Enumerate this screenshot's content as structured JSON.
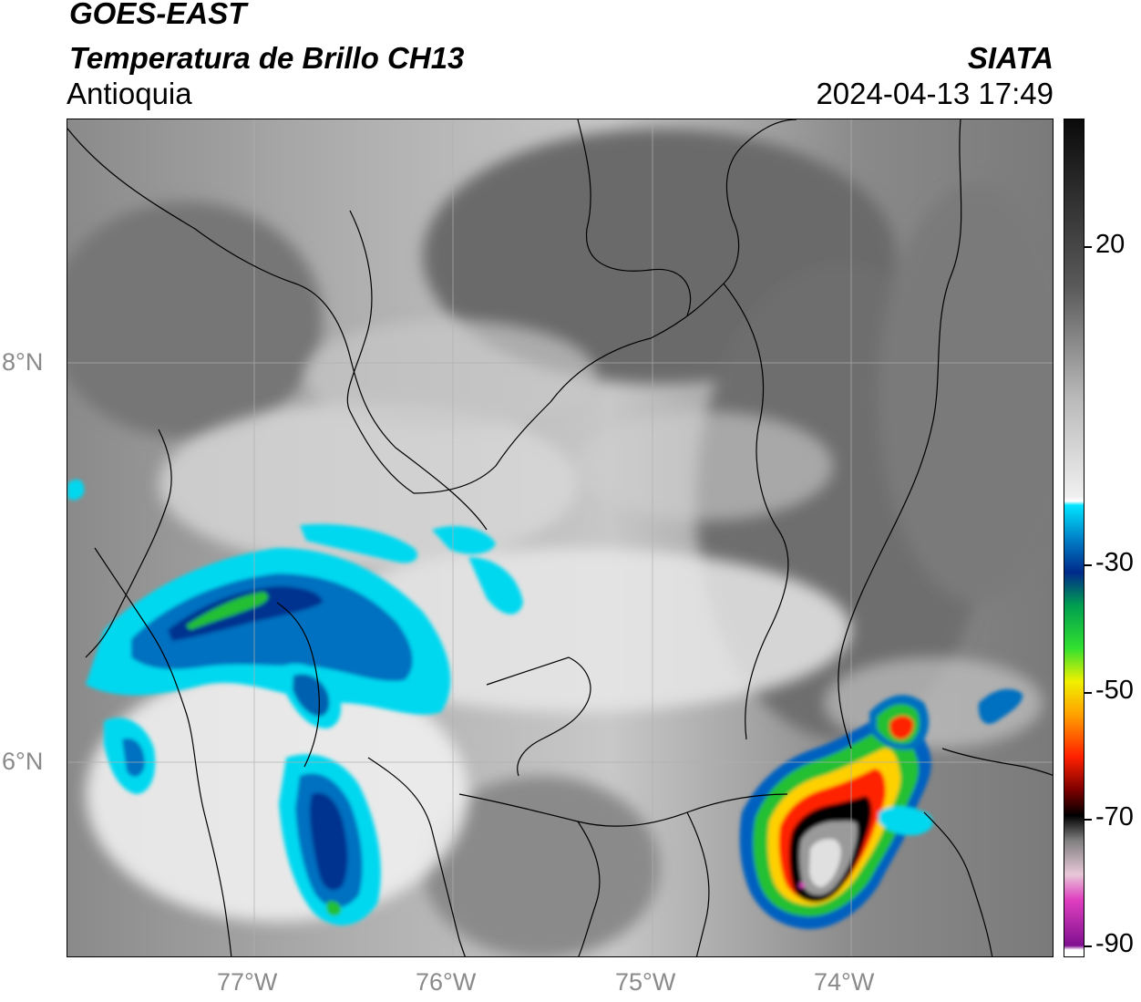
{
  "header": {
    "satellite": "GOES-EAST",
    "product": "Temperatura de Brillo CH13",
    "region": "Antioquia",
    "agency": "SIATA",
    "datetime": "2024-04-13 17:49"
  },
  "map": {
    "lat_labels": [
      "8°N",
      "6°N"
    ],
    "lon_labels": [
      "77°W",
      "76°W",
      "75°W",
      "74°W"
    ],
    "background_gray": "#7a7a7a",
    "gridline_color": "#b0b0b0",
    "border_color": "#000000"
  },
  "colorbar": {
    "labels": [
      "20",
      "-30",
      "-50",
      "-70",
      "-90"
    ],
    "stops": [
      {
        "color": "#0a0a0a",
        "pos": 0
      },
      {
        "color": "#5a5a5a",
        "pos": 0.2
      },
      {
        "color": "#b8b8b8",
        "pos": 0.33
      },
      {
        "color": "#f0f0f0",
        "pos": 0.45
      },
      {
        "color": "#ffffff",
        "pos": 0.455
      },
      {
        "color": "#00e5ff",
        "pos": 0.46
      },
      {
        "color": "#0080c8",
        "pos": 0.5
      },
      {
        "color": "#002a8a",
        "pos": 0.54
      },
      {
        "color": "#00a050",
        "pos": 0.58
      },
      {
        "color": "#30e030",
        "pos": 0.63
      },
      {
        "color": "#f0f000",
        "pos": 0.67
      },
      {
        "color": "#ffa000",
        "pos": 0.71
      },
      {
        "color": "#ff2000",
        "pos": 0.76
      },
      {
        "color": "#7a0000",
        "pos": 0.8
      },
      {
        "color": "#000000",
        "pos": 0.83
      },
      {
        "color": "#808080",
        "pos": 0.86
      },
      {
        "color": "#e8c8d8",
        "pos": 0.9
      },
      {
        "color": "#e040c0",
        "pos": 0.93
      },
      {
        "color": "#801090",
        "pos": 0.985
      },
      {
        "color": "#ffffff",
        "pos": 0.99
      }
    ]
  }
}
